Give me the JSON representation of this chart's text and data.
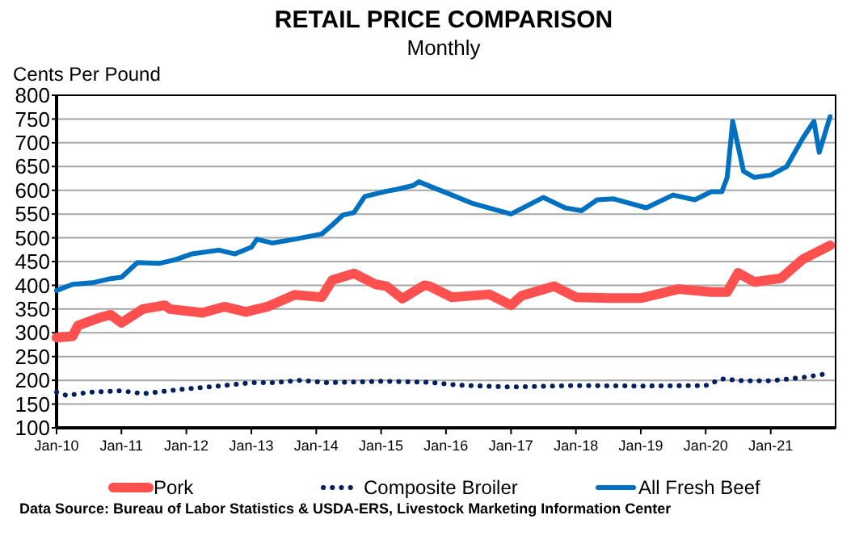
{
  "chart_data": {
    "type": "line",
    "title": "RETAIL PRICE COMPARISON",
    "subtitle": "Monthly",
    "ylabel": "Cents Per Pound",
    "xlim": [
      "2010-01",
      "2022-01"
    ],
    "xticks": [
      {
        "value": "2010-01",
        "label": "Jan-10"
      },
      {
        "value": "2011-01",
        "label": "Jan-11"
      },
      {
        "value": "2012-01",
        "label": "Jan-12"
      },
      {
        "value": "2013-01",
        "label": "Jan-13"
      },
      {
        "value": "2014-01",
        "label": "Jan-14"
      },
      {
        "value": "2015-01",
        "label": "Jan-15"
      },
      {
        "value": "2016-01",
        "label": "Jan-16"
      },
      {
        "value": "2017-01",
        "label": "Jan-17"
      },
      {
        "value": "2018-01",
        "label": "Jan-18"
      },
      {
        "value": "2019-01",
        "label": "Jan-19"
      },
      {
        "value": "2020-01",
        "label": "Jan-20"
      },
      {
        "value": "2021-01",
        "label": "Jan-21"
      }
    ],
    "ylim": [
      100,
      800
    ],
    "yticks": [
      100,
      150,
      200,
      250,
      300,
      350,
      400,
      450,
      500,
      550,
      600,
      650,
      700,
      750,
      800
    ],
    "grid": "y",
    "legend": "bottom",
    "marker": "none",
    "series": [
      {
        "name": "Pork",
        "color": "#ff5050",
        "line_style": "solid",
        "x": [
          "2010-01",
          "2010-04",
          "2010-05",
          "2010-09",
          "2010-11",
          "2011-01",
          "2011-05",
          "2011-09",
          "2011-10",
          "2012-04",
          "2012-08",
          "2012-12",
          "2013-04",
          "2013-09",
          "2014-02",
          "2014-04",
          "2014-08",
          "2014-12",
          "2015-02",
          "2015-05",
          "2015-09",
          "2015-10",
          "2016-02",
          "2016-09",
          "2017-01",
          "2017-03",
          "2017-09",
          "2018-01",
          "2018-07",
          "2019-01",
          "2019-08",
          "2020-02",
          "2020-05",
          "2020-07",
          "2020-10",
          "2021-03",
          "2021-07",
          "2021-12"
        ],
        "values": [
          290,
          293,
          315,
          332,
          338,
          321,
          350,
          358,
          350,
          342,
          355,
          344,
          355,
          380,
          375,
          411,
          425,
          402,
          398,
          372,
          400,
          398,
          375,
          381,
          358,
          378,
          398,
          375,
          373,
          373,
          392,
          386,
          386,
          426,
          407,
          415,
          455,
          484
        ]
      },
      {
        "name": "Composite Broiler",
        "color": "#002060",
        "line_style": "dotted",
        "x": [
          "2010-01",
          "2010-03",
          "2010-07",
          "2011-01",
          "2011-05",
          "2012-01",
          "2012-07",
          "2013-01",
          "2013-05",
          "2013-10",
          "2014-03",
          "2015-01",
          "2015-10",
          "2016-03",
          "2017-01",
          "2018-01",
          "2019-01",
          "2020-01",
          "2020-04",
          "2020-08",
          "2021-01",
          "2021-07",
          "2021-12"
        ],
        "values": [
          175,
          168,
          175,
          178,
          172,
          182,
          188,
          195,
          195,
          200,
          195,
          198,
          196,
          190,
          186,
          189,
          188,
          189,
          203,
          199,
          199,
          206,
          215
        ]
      },
      {
        "name": "All Fresh Beef",
        "color": "#0070c0",
        "line_style": "solid",
        "x": [
          "2010-01",
          "2010-04",
          "2010-08",
          "2010-11",
          "2011-01",
          "2011-04",
          "2011-08",
          "2011-11",
          "2012-02",
          "2012-07",
          "2012-10",
          "2013-01",
          "2013-02",
          "2013-05",
          "2013-09",
          "2014-02",
          "2014-04",
          "2014-06",
          "2014-08",
          "2014-10",
          "2015-02",
          "2015-04",
          "2015-07",
          "2015-08",
          "2015-11",
          "2016-01",
          "2016-06",
          "2017-01",
          "2017-07",
          "2017-11",
          "2018-02",
          "2018-05",
          "2018-08",
          "2019-02",
          "2019-07",
          "2019-11",
          "2020-02",
          "2020-04",
          "2020-05",
          "2020-06",
          "2020-08",
          "2020-10",
          "2021-01",
          "2021-04",
          "2021-07",
          "2021-09",
          "2021-10",
          "2021-12"
        ],
        "values": [
          389,
          402,
          406,
          414,
          417,
          448,
          446,
          454,
          466,
          474,
          466,
          480,
          497,
          489,
          497,
          508,
          527,
          548,
          553,
          587,
          598,
          602,
          610,
          618,
          604,
          595,
          572,
          550,
          585,
          563,
          557,
          580,
          582,
          563,
          590,
          580,
          597,
          597,
          627,
          745,
          640,
          627,
          632,
          650,
          710,
          745,
          680,
          755
        ]
      }
    ],
    "annotations": [
      "Data Source: Bureau of Labor Statistics & USDA-ERS, Livestock Marketing Information Center"
    ]
  }
}
